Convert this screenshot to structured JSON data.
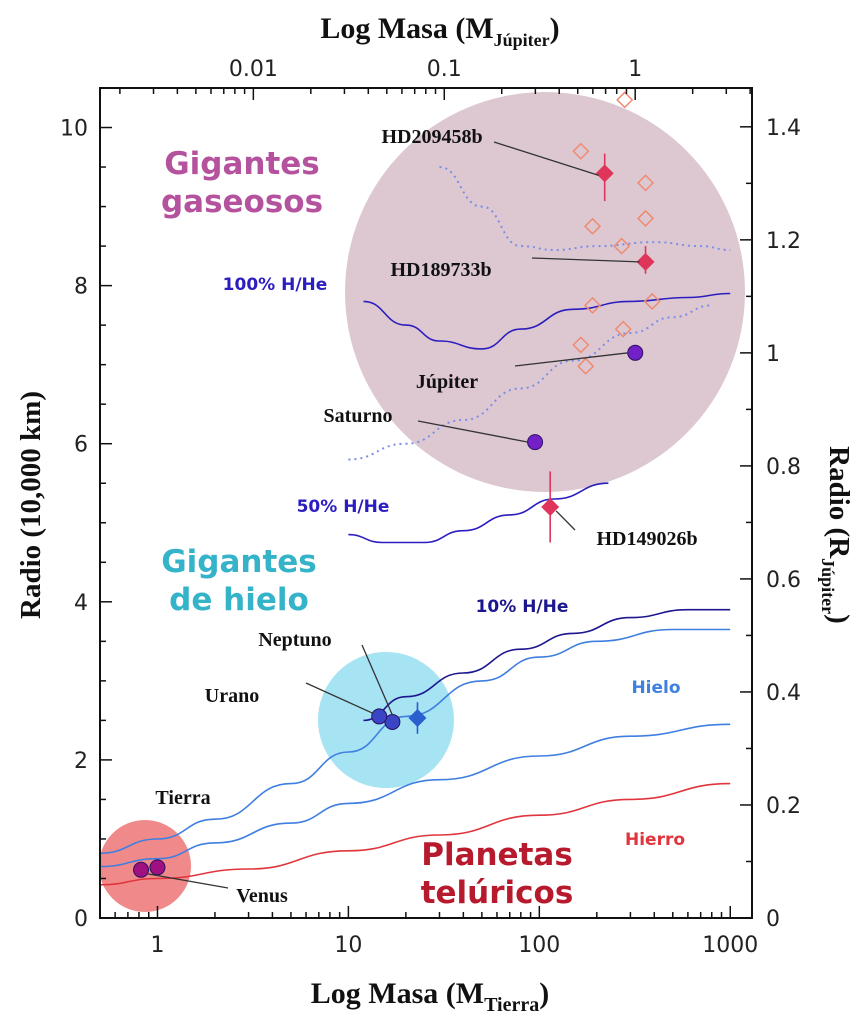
{
  "chart_data": {
    "type": "scatter",
    "x_label_main": "Log Masa (M",
    "x_label_sub": "Tierra",
    "x_label_close": ")",
    "top_label_main": "Log Masa (M",
    "top_label_sub": "Júpiter",
    "top_label_close": ")",
    "y_label": "Radio (10,000 km)",
    "y2_label_main": "Radio (R",
    "y2_label_sub": "Júpiter",
    "y2_label_close": ")",
    "x_scale": "log",
    "x_range": [
      0.5,
      1300
    ],
    "y_range": [
      0,
      10.5
    ],
    "x_ticks": [
      {
        "value": 1,
        "label": "1"
      },
      {
        "value": 10,
        "label": "10"
      },
      {
        "value": 100,
        "label": "100"
      },
      {
        "value": 1000,
        "label": "1000"
      }
    ],
    "top_ticks": [
      {
        "value": 0.01,
        "label": "0.01"
      },
      {
        "value": 0.1,
        "label": "0.1"
      },
      {
        "value": 1,
        "label": "1"
      }
    ],
    "y_ticks": [
      {
        "value": 0,
        "label": "0"
      },
      {
        "value": 2,
        "label": "2"
      },
      {
        "value": 4,
        "label": "4"
      },
      {
        "value": 6,
        "label": "6"
      },
      {
        "value": 8,
        "label": "8"
      },
      {
        "value": 10,
        "label": "10"
      }
    ],
    "y2_ticks": [
      {
        "value": 0,
        "label": "0"
      },
      {
        "value": 0.2,
        "label": "0.2"
      },
      {
        "value": 0.4,
        "label": "0.4"
      },
      {
        "value": 0.6,
        "label": "0.6"
      },
      {
        "value": 0.8,
        "label": "0.8"
      },
      {
        "value": 1,
        "label": "1"
      },
      {
        "value": 1.2,
        "label": "1.2"
      },
      {
        "value": 1.4,
        "label": "1.4"
      }
    ],
    "regions": [
      {
        "label_lines": [
          "Gigantes",
          "gaseosos"
        ],
        "color": "#b5529e",
        "fill": "#ddc8d2"
      },
      {
        "label_lines": [
          "Gigantes",
          "de hielo"
        ],
        "color": "#34b3c9",
        "fill": "#a6e3f3"
      },
      {
        "label_lines": [
          "Planetas",
          "telúricos"
        ],
        "color": "#b7192d",
        "fill": "#f08a8a"
      }
    ],
    "curves": [
      {
        "name": "100% H/He",
        "color": "#2b1dbf",
        "style": "solid",
        "points": [
          [
            12,
            7.8
          ],
          [
            20,
            7.5
          ],
          [
            30,
            7.3
          ],
          [
            50,
            7.2
          ],
          [
            80,
            7.45
          ],
          [
            150,
            7.7
          ],
          [
            300,
            7.8
          ],
          [
            600,
            7.85
          ],
          [
            1000,
            7.9
          ]
        ]
      },
      {
        "name": "",
        "color": "#7a8ee8",
        "style": "dotted",
        "points": [
          [
            10,
            5.8
          ],
          [
            20,
            6.0
          ],
          [
            40,
            6.3
          ],
          [
            80,
            6.7
          ],
          [
            150,
            7.05
          ],
          [
            300,
            7.4
          ],
          [
            500,
            7.6
          ],
          [
            800,
            7.75
          ]
        ]
      },
      {
        "name": "",
        "color": "#7a8ee8",
        "style": "dotted",
        "points": [
          [
            30,
            9.5
          ],
          [
            50,
            9.0
          ],
          [
            80,
            8.5
          ],
          [
            120,
            8.45
          ],
          [
            200,
            8.5
          ],
          [
            400,
            8.55
          ],
          [
            700,
            8.5
          ],
          [
            1000,
            8.45
          ]
        ]
      },
      {
        "name": "50% H/He",
        "color": "#2b1dbf",
        "style": "solid",
        "points": [
          [
            10,
            4.85
          ],
          [
            15,
            4.75
          ],
          [
            25,
            4.75
          ],
          [
            40,
            4.9
          ],
          [
            70,
            5.1
          ],
          [
            120,
            5.3
          ],
          [
            230,
            5.5
          ]
        ]
      },
      {
        "name": "10% H/He",
        "color": "#1c168f",
        "style": "solid",
        "points": [
          [
            12,
            2.5
          ],
          [
            20,
            2.8
          ],
          [
            40,
            3.1
          ],
          [
            80,
            3.4
          ],
          [
            150,
            3.6
          ],
          [
            300,
            3.8
          ],
          [
            600,
            3.9
          ],
          [
            1000,
            3.9
          ]
        ]
      },
      {
        "name": "",
        "color": "#3f7fe0",
        "style": "solid",
        "points": [
          [
            0.5,
            0.82
          ],
          [
            1,
            1.0
          ],
          [
            2,
            1.25
          ],
          [
            5,
            1.7
          ],
          [
            10,
            2.1
          ],
          [
            20,
            2.55
          ],
          [
            50,
            3.0
          ],
          [
            100,
            3.3
          ],
          [
            200,
            3.5
          ],
          [
            500,
            3.65
          ],
          [
            1000,
            3.65
          ]
        ]
      },
      {
        "name": "Hielo",
        "color": "#3f7fe0",
        "style": "solid",
        "points": [
          [
            0.5,
            0.65
          ],
          [
            1,
            0.75
          ],
          [
            2,
            0.95
          ],
          [
            5,
            1.2
          ],
          [
            10,
            1.45
          ],
          [
            30,
            1.75
          ],
          [
            100,
            2.05
          ],
          [
            300,
            2.3
          ],
          [
            1000,
            2.45
          ]
        ]
      },
      {
        "name": "Hierro",
        "color": "#e0353d",
        "style": "solid",
        "points": [
          [
            0.5,
            0.42
          ],
          [
            1,
            0.5
          ],
          [
            3,
            0.62
          ],
          [
            10,
            0.85
          ],
          [
            30,
            1.05
          ],
          [
            100,
            1.3
          ],
          [
            300,
            1.5
          ],
          [
            1000,
            1.7
          ]
        ]
      }
    ],
    "planets": [
      {
        "name": "Júpiter",
        "x": 318,
        "y": 7.15,
        "color": "#7320c8"
      },
      {
        "name": "Saturno",
        "x": 95,
        "y": 6.02,
        "color": "#7320c8"
      },
      {
        "name": "Neptuno",
        "x": 17,
        "y": 2.48,
        "color": "#3a45c6"
      },
      {
        "name": "Urano",
        "x": 14.5,
        "y": 2.55,
        "color": "#3a45c6"
      },
      {
        "name": "Tierra",
        "x": 1.0,
        "y": 0.64,
        "color": "#a11080"
      },
      {
        "name": "Venus",
        "x": 0.82,
        "y": 0.61,
        "color": "#a11080"
      }
    ],
    "exoplanets": [
      {
        "name": "HD209458b",
        "x": 220,
        "y": 9.42,
        "color": "#e0355a"
      },
      {
        "name": "HD189733b",
        "x": 360,
        "y": 8.3,
        "color": "#e0355a"
      },
      {
        "name": "HD149026b",
        "x": 114,
        "y": 5.2,
        "color": "#e0355a"
      },
      {
        "name": "",
        "x": 23,
        "y": 2.53,
        "color": "#2a5fd0"
      }
    ],
    "other_exoplanets": [
      [
        280,
        10.35
      ],
      [
        165,
        9.7
      ],
      [
        360,
        9.3
      ],
      [
        190,
        8.75
      ],
      [
        360,
        8.85
      ],
      [
        270,
        8.5
      ],
      [
        190,
        7.75
      ],
      [
        390,
        7.8
      ],
      [
        275,
        7.45
      ],
      [
        165,
        7.25
      ],
      [
        175,
        6.98
      ]
    ],
    "other_color": "#ee8a70"
  }
}
